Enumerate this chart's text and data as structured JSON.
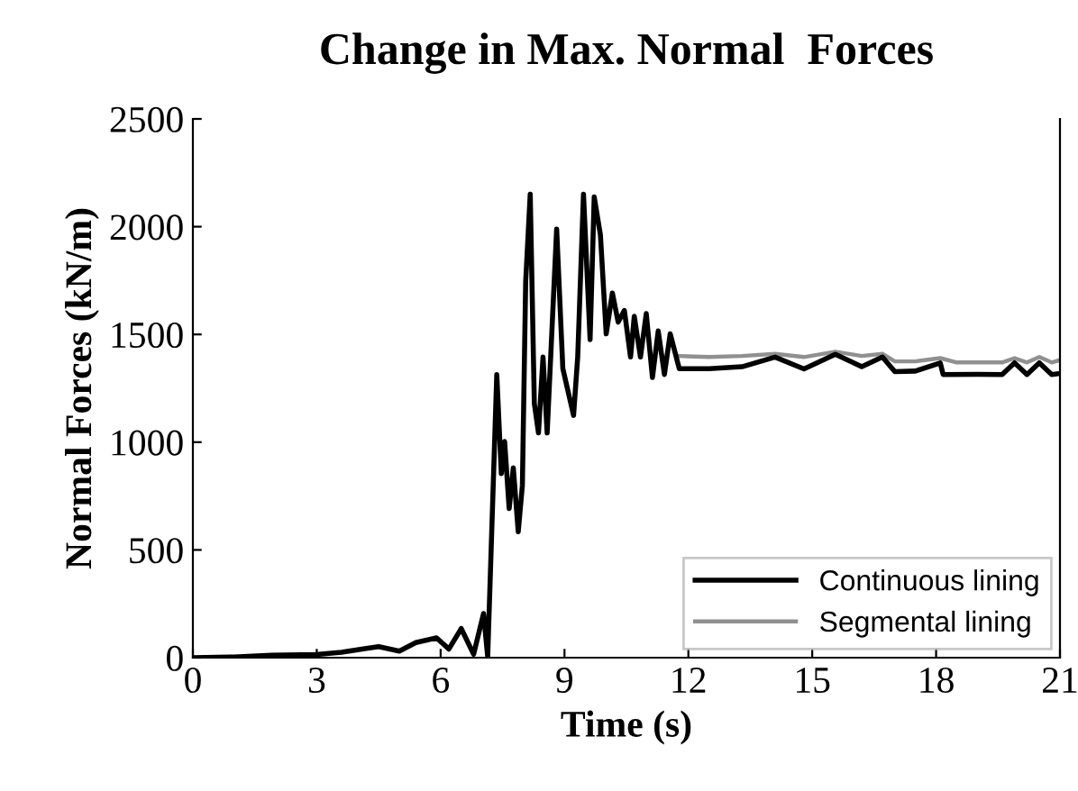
{
  "chart_data": {
    "type": "line",
    "title": "Change in Max. Normal  Forces",
    "xlabel": "Time (s)",
    "ylabel": "Normal Forces (kN/m)",
    "xlim": [
      0,
      21
    ],
    "xticks": [
      0,
      3,
      6,
      9,
      12,
      15,
      18,
      21
    ],
    "ylim": [
      0,
      2500
    ],
    "yticks": [
      0,
      500,
      1000,
      1500,
      2000,
      2500
    ],
    "grid": false,
    "legend": "bottom right",
    "marker": "none",
    "line_style": "solid",
    "series": [
      {
        "name": "Continuous lining",
        "color": "#000000",
        "x": [
          0,
          1.0,
          1.9,
          3.0,
          3.6,
          4.2,
          4.5,
          5.0,
          5.4,
          5.9,
          6.2,
          6.5,
          6.8,
          7.04,
          7.14,
          7.36,
          7.47,
          7.55,
          7.66,
          7.76,
          7.88,
          7.98,
          8.06,
          8.17,
          8.27,
          8.37,
          8.48,
          8.58,
          8.81,
          8.96,
          9.22,
          9.32,
          9.46,
          9.62,
          9.72,
          9.87,
          10.01,
          10.16,
          10.3,
          10.45,
          10.6,
          10.69,
          10.84,
          10.98,
          11.13,
          11.27,
          11.42,
          11.56,
          11.78,
          12.5,
          13.3,
          14.1,
          14.8,
          15.56,
          16.2,
          16.7,
          17.0,
          17.5,
          18.1,
          18.17,
          19.0,
          19.6,
          19.9,
          20.2,
          20.5,
          20.8,
          21
        ],
        "values": [
          0,
          3,
          11,
          15,
          25,
          43,
          51,
          30,
          70,
          92,
          40,
          135,
          16,
          205,
          3,
          1314,
          854,
          1003,
          692,
          881,
          584,
          800,
          1746,
          2151,
          1178,
          1043,
          1395,
          1043,
          1989,
          1341,
          1124,
          1395,
          2151,
          1476,
          2138,
          1962,
          1503,
          1692,
          1557,
          1611,
          1395,
          1584,
          1395,
          1597,
          1300,
          1516,
          1314,
          1503,
          1341,
          1341,
          1350,
          1395,
          1340,
          1408,
          1350,
          1395,
          1327,
          1330,
          1368,
          1314,
          1315,
          1314,
          1368,
          1314,
          1368,
          1314,
          1319
        ]
      },
      {
        "name": "Segmental lining",
        "color": "#909090",
        "x": [
          11.78,
          12.5,
          13.3,
          14.1,
          14.8,
          15.56,
          16.2,
          16.7,
          17.0,
          17.5,
          18.1,
          18.5,
          19.0,
          19.6,
          19.9,
          20.2,
          20.5,
          20.8,
          21
        ],
        "values": [
          1400,
          1395,
          1400,
          1410,
          1395,
          1420,
          1400,
          1410,
          1375,
          1375,
          1390,
          1370,
          1370,
          1370,
          1390,
          1370,
          1395,
          1370,
          1381
        ]
      }
    ]
  }
}
